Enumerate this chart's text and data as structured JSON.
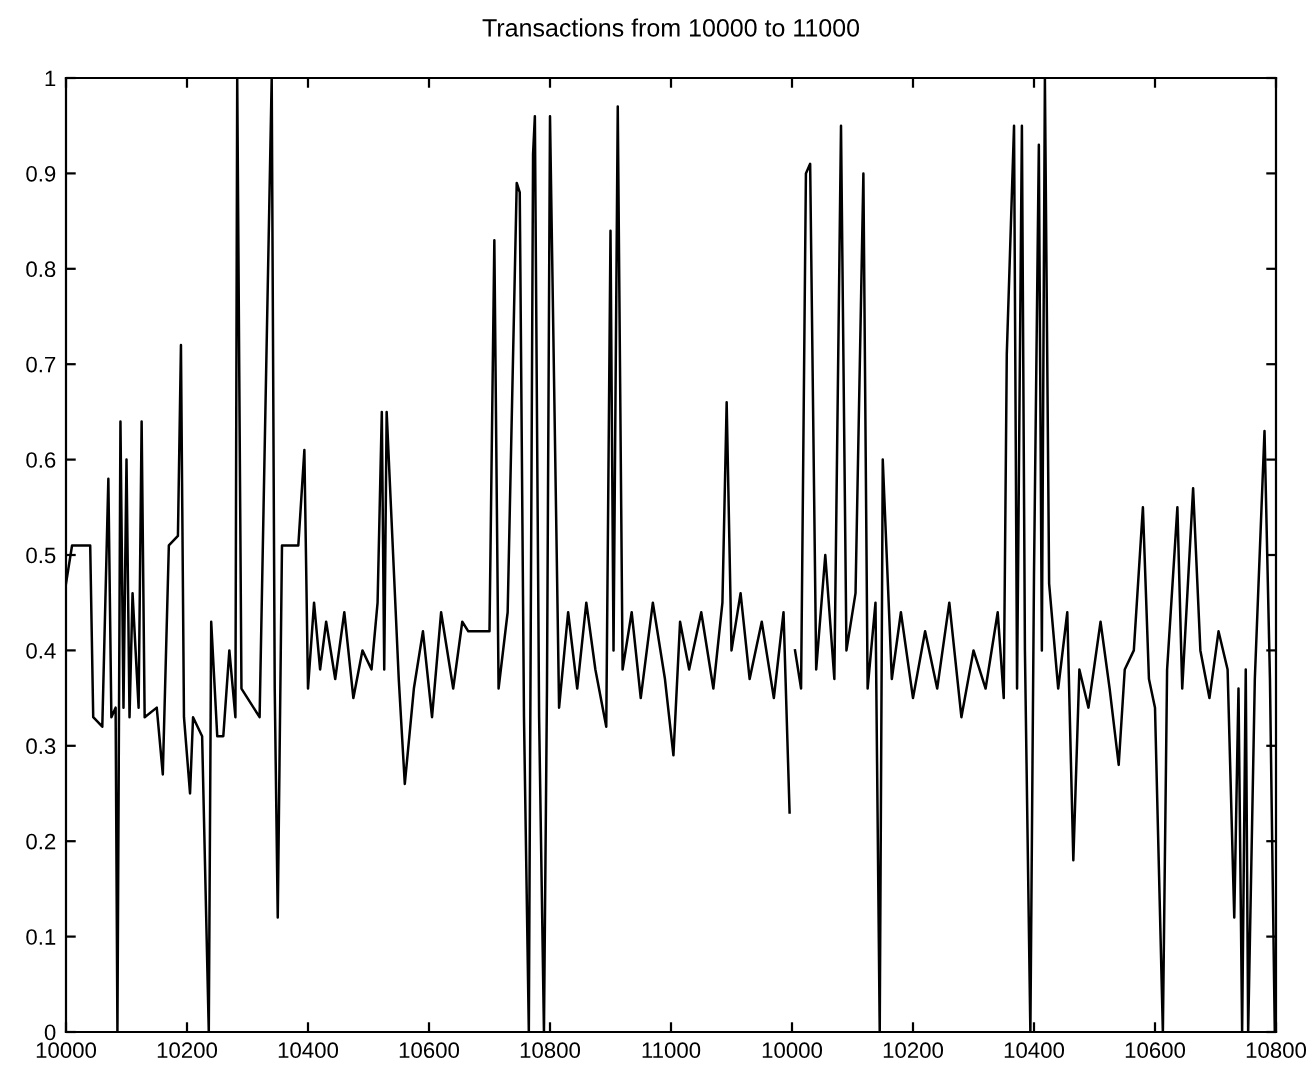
{
  "chart_data": [
    {
      "type": "line",
      "title": "Transactions from 10000 to 11000",
      "x": [
        10000,
        10010,
        10040,
        10045,
        10060,
        10070,
        10075,
        10082,
        10085,
        10090,
        10095,
        10100,
        10105,
        10110,
        10120,
        10125,
        10130,
        10150,
        10160,
        10170,
        10185,
        10190,
        10195,
        10205,
        10210,
        10225,
        10236,
        10240,
        10250,
        10260,
        10270,
        10280,
        10283,
        10290,
        10300,
        10320,
        10340,
        10345,
        10350,
        10357,
        10384,
        10394,
        10400,
        10410,
        10420,
        10430,
        10445,
        10460,
        10475,
        10490,
        10505,
        10515,
        10522,
        10526,
        10530,
        10550,
        10560,
        10575,
        10590,
        10605,
        10620,
        10640,
        10655,
        10665,
        10700,
        10708,
        10715,
        10730,
        10745,
        10750,
        10757,
        10765,
        10768,
        10772,
        10775,
        10782,
        10790,
        10795,
        10800,
        10815,
        10830,
        10845,
        10860,
        10875,
        10893,
        10900,
        10905,
        10912,
        10920,
        10935,
        10950,
        10970,
        10990,
        11004,
        11015,
        11030,
        11050,
        11070,
        11085,
        11092,
        11100,
        11115,
        11130,
        11150,
        11170,
        11186,
        11196
      ],
      "values": [
        0.47,
        0.51,
        0.51,
        0.33,
        0.32,
        0.58,
        0.33,
        0.34,
        0.0,
        0.64,
        0.34,
        0.6,
        0.33,
        0.46,
        0.34,
        0.64,
        0.33,
        0.34,
        0.27,
        0.51,
        0.52,
        0.72,
        0.33,
        0.25,
        0.33,
        0.31,
        0.0,
        0.43,
        0.31,
        0.31,
        0.4,
        0.33,
        1.0,
        0.36,
        0.35,
        0.33,
        1.0,
        0.36,
        0.12,
        0.51,
        0.51,
        0.61,
        0.36,
        0.45,
        0.38,
        0.43,
        0.37,
        0.44,
        0.35,
        0.4,
        0.38,
        0.45,
        0.65,
        0.38,
        0.65,
        0.37,
        0.26,
        0.36,
        0.42,
        0.33,
        0.44,
        0.36,
        0.43,
        0.42,
        0.42,
        0.83,
        0.36,
        0.44,
        0.89,
        0.88,
        0.33,
        0.0,
        0.4,
        0.92,
        0.96,
        0.33,
        0.0,
        0.36,
        0.96,
        0.34,
        0.44,
        0.36,
        0.45,
        0.38,
        0.32,
        0.84,
        0.4,
        0.97,
        0.38,
        0.44,
        0.35,
        0.45,
        0.37,
        0.29,
        0.43,
        0.38,
        0.44,
        0.36,
        0.45,
        0.66,
        0.4,
        0.46,
        0.37,
        0.43,
        0.35,
        0.44,
        0.23
      ],
      "color": "#000000",
      "xlim": [
        10000,
        11200
      ],
      "xticks": [
        10000,
        10200,
        10400,
        10600,
        10800,
        11000
      ],
      "ylim": [
        0,
        1
      ],
      "yticks": [
        0,
        0.1,
        0.2,
        0.3,
        0.4,
        0.5,
        0.6,
        0.7,
        0.8,
        0.9,
        1
      ],
      "grid": false,
      "marker": "none",
      "line_style": "solid"
    },
    {
      "type": "line",
      "x": [
        10005,
        10015,
        10023,
        10030,
        10040,
        10055,
        10070,
        10081,
        10090,
        10105,
        10118,
        10125,
        10138,
        10145,
        10150,
        10165,
        10180,
        10200,
        10220,
        10240,
        10260,
        10280,
        10300,
        10320,
        10340,
        10350,
        10355,
        10367,
        10372,
        10380,
        10385,
        10394,
        10400,
        10408,
        10413,
        10418,
        10425,
        10440,
        10455,
        10465,
        10475,
        10490,
        10510,
        10525,
        10540,
        10550,
        10565,
        10580,
        10590,
        10600,
        10613,
        10620,
        10637,
        10645,
        10663,
        10675,
        10690,
        10705,
        10720,
        10731,
        10738,
        10744,
        10750,
        10754,
        10765,
        10781,
        10790,
        10798
      ],
      "values": [
        0.4,
        0.36,
        0.9,
        0.91,
        0.38,
        0.5,
        0.37,
        0.95,
        0.4,
        0.46,
        0.9,
        0.36,
        0.45,
        0.0,
        0.6,
        0.37,
        0.44,
        0.35,
        0.42,
        0.36,
        0.45,
        0.33,
        0.4,
        0.36,
        0.44,
        0.35,
        0.71,
        0.95,
        0.36,
        0.95,
        0.4,
        0.0,
        0.48,
        0.93,
        0.4,
        1.0,
        0.47,
        0.36,
        0.44,
        0.18,
        0.38,
        0.34,
        0.43,
        0.36,
        0.28,
        0.38,
        0.4,
        0.55,
        0.37,
        0.34,
        0.0,
        0.38,
        0.55,
        0.36,
        0.57,
        0.4,
        0.35,
        0.42,
        0.38,
        0.12,
        0.36,
        0.0,
        0.38,
        0.0,
        0.37,
        0.63,
        0.37,
        0.0
      ],
      "color": "#000000",
      "xlim": [
        10000,
        10800
      ],
      "xticks": [
        10000,
        10200,
        10400,
        10600,
        10800
      ],
      "ylim": [
        0,
        1
      ],
      "yticks": [
        0,
        0.1,
        0.2,
        0.3,
        0.4,
        0.5,
        0.6,
        0.7,
        0.8,
        0.9,
        1
      ],
      "tick_labels": "x",
      "grid": false,
      "marker": "none",
      "line_style": "solid"
    }
  ]
}
